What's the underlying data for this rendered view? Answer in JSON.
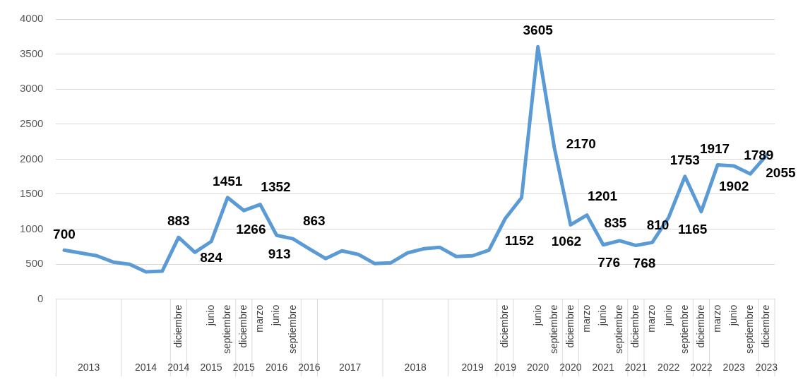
{
  "chart_data": {
    "type": "line",
    "categories": [
      null,
      null,
      null,
      null,
      null,
      null,
      null,
      "diciembre",
      null,
      "junio",
      "septiembre",
      "diciembre",
      "marzo",
      "junio",
      "septiembre",
      null,
      null,
      null,
      null,
      null,
      null,
      null,
      null,
      null,
      null,
      null,
      null,
      "diciembre",
      null,
      "junio",
      "septiembre",
      "diciembre",
      "marzo",
      "junio",
      "septiembre",
      "diciembre",
      "marzo",
      "junio",
      "septiembre",
      "diciembre",
      "marzo",
      "junio",
      "septiembre",
      "diciembre"
    ],
    "series": [
      {
        "color": "#5b9bd5",
        "values": [
          700,
          660,
          620,
          530,
          500,
          390,
          400,
          883,
          670,
          824,
          1451,
          1266,
          1352,
          913,
          863,
          720,
          580,
          690,
          640,
          510,
          520,
          660,
          720,
          740,
          610,
          620,
          700,
          1152,
          1450,
          3605,
          2170,
          1062,
          1201,
          776,
          835,
          768,
          810,
          1165,
          1753,
          1250,
          1917,
          1902,
          1789,
          2055
        ],
        "value_labels": [
          "700",
          null,
          null,
          null,
          null,
          null,
          null,
          "883",
          null,
          "824",
          "1451",
          "1266",
          "1352",
          "913",
          "863",
          null,
          null,
          null,
          null,
          null,
          null,
          null,
          null,
          null,
          null,
          null,
          null,
          "1152",
          null,
          "3605",
          "2170",
          "1062",
          "1201",
          "776",
          "835",
          "768",
          "810",
          "1165",
          "1753",
          null,
          "1917",
          "1902",
          "1789",
          "2055"
        ]
      }
    ],
    "annotations": [
      "2013",
      "2014",
      "2014",
      "2015",
      "2015",
      "2016",
      "2016",
      "2017",
      "2018",
      "2019",
      "2019",
      "2020",
      "2020",
      "2021",
      "2021",
      "2022",
      "2022",
      "2023",
      "2023"
    ],
    "ylim": [
      0,
      4000
    ],
    "yticks": [
      0,
      500,
      1000,
      1500,
      2000,
      2500,
      3000,
      3500,
      4000
    ],
    "grid": "y",
    "legend": false,
    "marker": "none",
    "line_style": "solid"
  }
}
